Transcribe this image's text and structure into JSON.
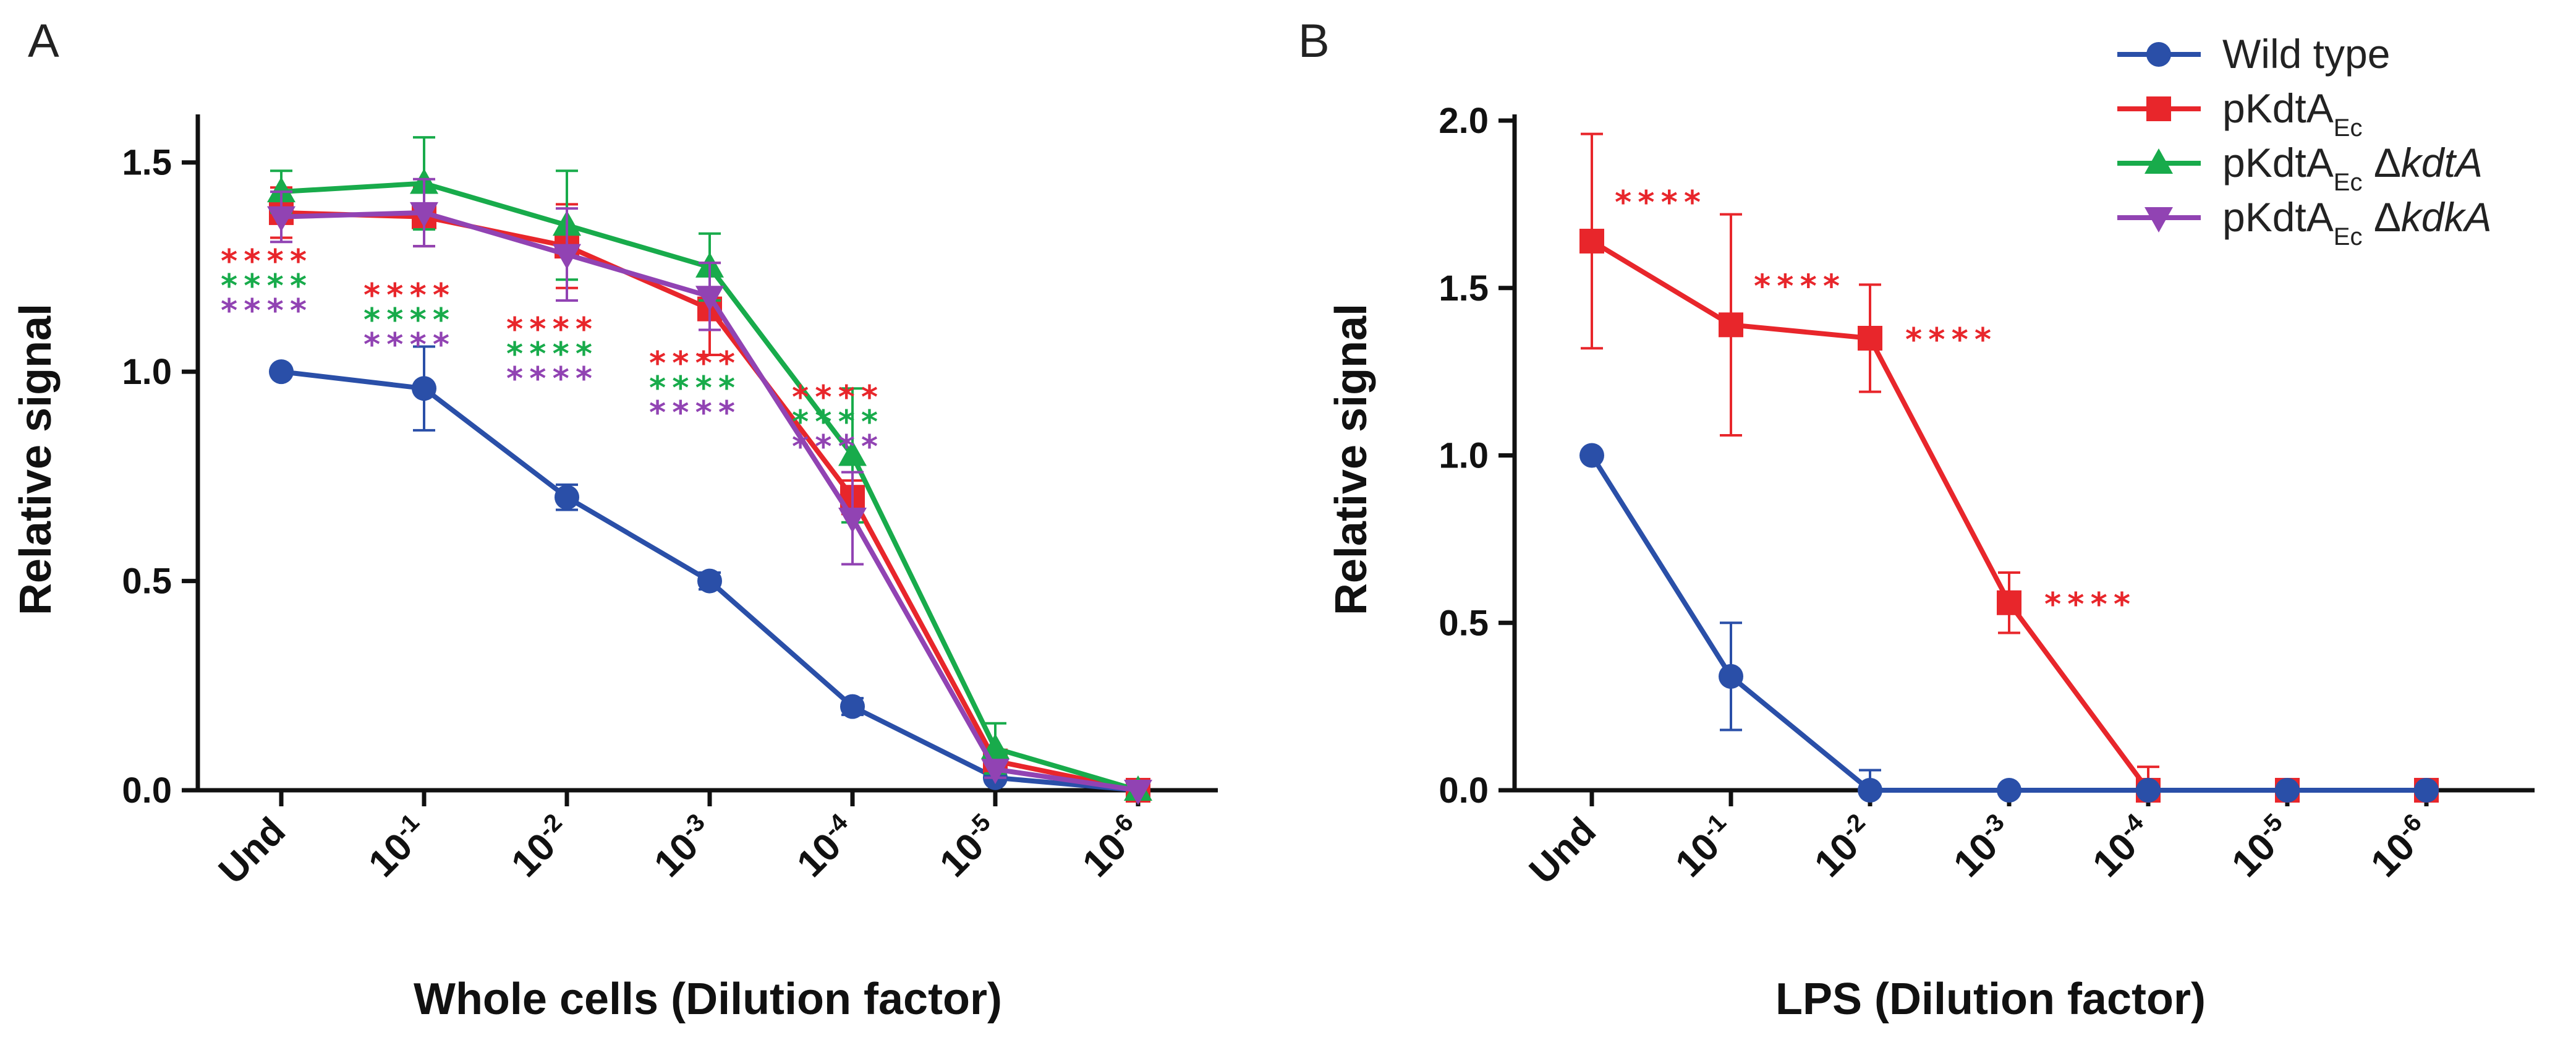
{
  "chart_data": [
    {
      "type": "line",
      "panel_label": "A",
      "xlabel": "Whole cells (Dilution factor)",
      "ylabel": "Relative signal",
      "ylim": [
        0,
        1.6
      ],
      "yticks": [
        "0.0",
        "0.5",
        "1.0",
        "1.5"
      ],
      "categories": [
        {
          "base": "Und",
          "exp": ""
        },
        {
          "base": "10",
          "exp": "-1"
        },
        {
          "base": "10",
          "exp": "-2"
        },
        {
          "base": "10",
          "exp": "-3"
        },
        {
          "base": "10",
          "exp": "-4"
        },
        {
          "base": "10",
          "exp": "-5"
        },
        {
          "base": "10",
          "exp": "-6"
        }
      ],
      "series": [
        {
          "name": "Wild type",
          "color": "#2a4fa8",
          "marker": "circle",
          "values": [
            1.0,
            0.96,
            0.7,
            0.5,
            0.2,
            0.03,
            0.0
          ],
          "errors": [
            0.0,
            0.1,
            0.03,
            0.02,
            0.02,
            0.01,
            0.0
          ]
        },
        {
          "name": "pKdtA_Ec",
          "color": "#e8262b",
          "marker": "square",
          "values": [
            1.38,
            1.37,
            1.3,
            1.15,
            0.7,
            0.07,
            0.0
          ],
          "errors": [
            0.06,
            0.07,
            0.1,
            0.11,
            0.04,
            0.02,
            0.0
          ]
        },
        {
          "name": "pKdtA_Ec ΔkdtA",
          "color": "#18ab4b",
          "marker": "triangle",
          "values": [
            1.43,
            1.45,
            1.35,
            1.25,
            0.8,
            0.1,
            0.0
          ],
          "errors": [
            0.05,
            0.11,
            0.13,
            0.08,
            0.16,
            0.06,
            0.0
          ]
        },
        {
          "name": "pKdtA_Ec ΔkdkA",
          "color": "#9143b3",
          "marker": "triangle-down",
          "values": [
            1.37,
            1.38,
            1.28,
            1.18,
            0.65,
            0.05,
            0.0
          ],
          "errors": [
            0.06,
            0.08,
            0.11,
            0.08,
            0.11,
            0.02,
            0.0
          ]
        }
      ],
      "annotations": [
        {
          "x_index": 0,
          "rows": [
            {
              "text": "****",
              "color": "#e8262b"
            },
            {
              "text": "****",
              "color": "#18ab4b"
            },
            {
              "text": "****",
              "color": "#9143b3"
            }
          ]
        },
        {
          "x_index": 1,
          "rows": [
            {
              "text": "****",
              "color": "#e8262b"
            },
            {
              "text": "****",
              "color": "#18ab4b"
            },
            {
              "text": "****",
              "color": "#9143b3"
            }
          ]
        },
        {
          "x_index": 2,
          "rows": [
            {
              "text": "****",
              "color": "#e8262b"
            },
            {
              "text": "****",
              "color": "#18ab4b"
            },
            {
              "text": "****",
              "color": "#9143b3"
            }
          ]
        },
        {
          "x_index": 3,
          "rows": [
            {
              "text": "****",
              "color": "#e8262b"
            },
            {
              "text": "****",
              "color": "#18ab4b"
            },
            {
              "text": "****",
              "color": "#9143b3"
            }
          ]
        },
        {
          "x_index": 4,
          "rows": [
            {
              "text": "****",
              "color": "#e8262b"
            },
            {
              "text": "****",
              "color": "#18ab4b"
            },
            {
              "text": "****",
              "color": "#9143b3"
            }
          ]
        }
      ]
    },
    {
      "type": "line",
      "panel_label": "B",
      "xlabel": "LPS (Dilution factor)",
      "ylabel": "Relative signal",
      "ylim": [
        0,
        2.0
      ],
      "yticks": [
        "0.0",
        "0.5",
        "1.0",
        "1.5",
        "2.0"
      ],
      "categories": [
        {
          "base": "Und",
          "exp": ""
        },
        {
          "base": "10",
          "exp": "-1"
        },
        {
          "base": "10",
          "exp": "-2"
        },
        {
          "base": "10",
          "exp": "-3"
        },
        {
          "base": "10",
          "exp": "-4"
        },
        {
          "base": "10",
          "exp": "-5"
        },
        {
          "base": "10",
          "exp": "-6"
        }
      ],
      "series": [
        {
          "name": "pKdtA_Ec",
          "color": "#e8262b",
          "marker": "square",
          "values": [
            1.64,
            1.39,
            1.35,
            0.56,
            0.0,
            0.0,
            0.0
          ],
          "errors": [
            0.32,
            0.33,
            0.16,
            0.09,
            0.07,
            0.0,
            0.0
          ]
        },
        {
          "name": "Wild type",
          "color": "#2a4fa8",
          "marker": "circle",
          "values": [
            1.0,
            0.34,
            0.0,
            0.0,
            0.0,
            0.0,
            0.0
          ],
          "errors": [
            0.0,
            0.16,
            0.06,
            0.0,
            0.0,
            0.0,
            0.0
          ]
        }
      ],
      "annotations": [
        {
          "x_index": 0,
          "rows": [
            {
              "text": "****",
              "color": "#e8262b"
            }
          ]
        },
        {
          "x_index": 1,
          "rows": [
            {
              "text": "****",
              "color": "#e8262b"
            }
          ]
        },
        {
          "x_index": 2,
          "rows": [
            {
              "text": "****",
              "color": "#e8262b"
            }
          ]
        },
        {
          "x_index": 3,
          "rows": [
            {
              "text": "****",
              "color": "#e8262b"
            }
          ]
        }
      ]
    }
  ],
  "legend": {
    "placement": "top-right",
    "items": [
      {
        "base": "Wild type",
        "sub": "",
        "suffix_delta": "",
        "suffix_gene": "",
        "color": "#2a4fa8",
        "marker": "circle"
      },
      {
        "base": "pKdtA",
        "sub": "Ec",
        "suffix_delta": "",
        "suffix_gene": "",
        "color": "#e8262b",
        "marker": "square"
      },
      {
        "base": "pKdtA",
        "sub": "Ec",
        "suffix_delta": "Δ",
        "suffix_gene": "kdtA",
        "color": "#18ab4b",
        "marker": "triangle"
      },
      {
        "base": "pKdtA",
        "sub": "Ec",
        "suffix_delta": "Δ",
        "suffix_gene": "kdkA",
        "color": "#9143b3",
        "marker": "triangle-down"
      }
    ]
  }
}
